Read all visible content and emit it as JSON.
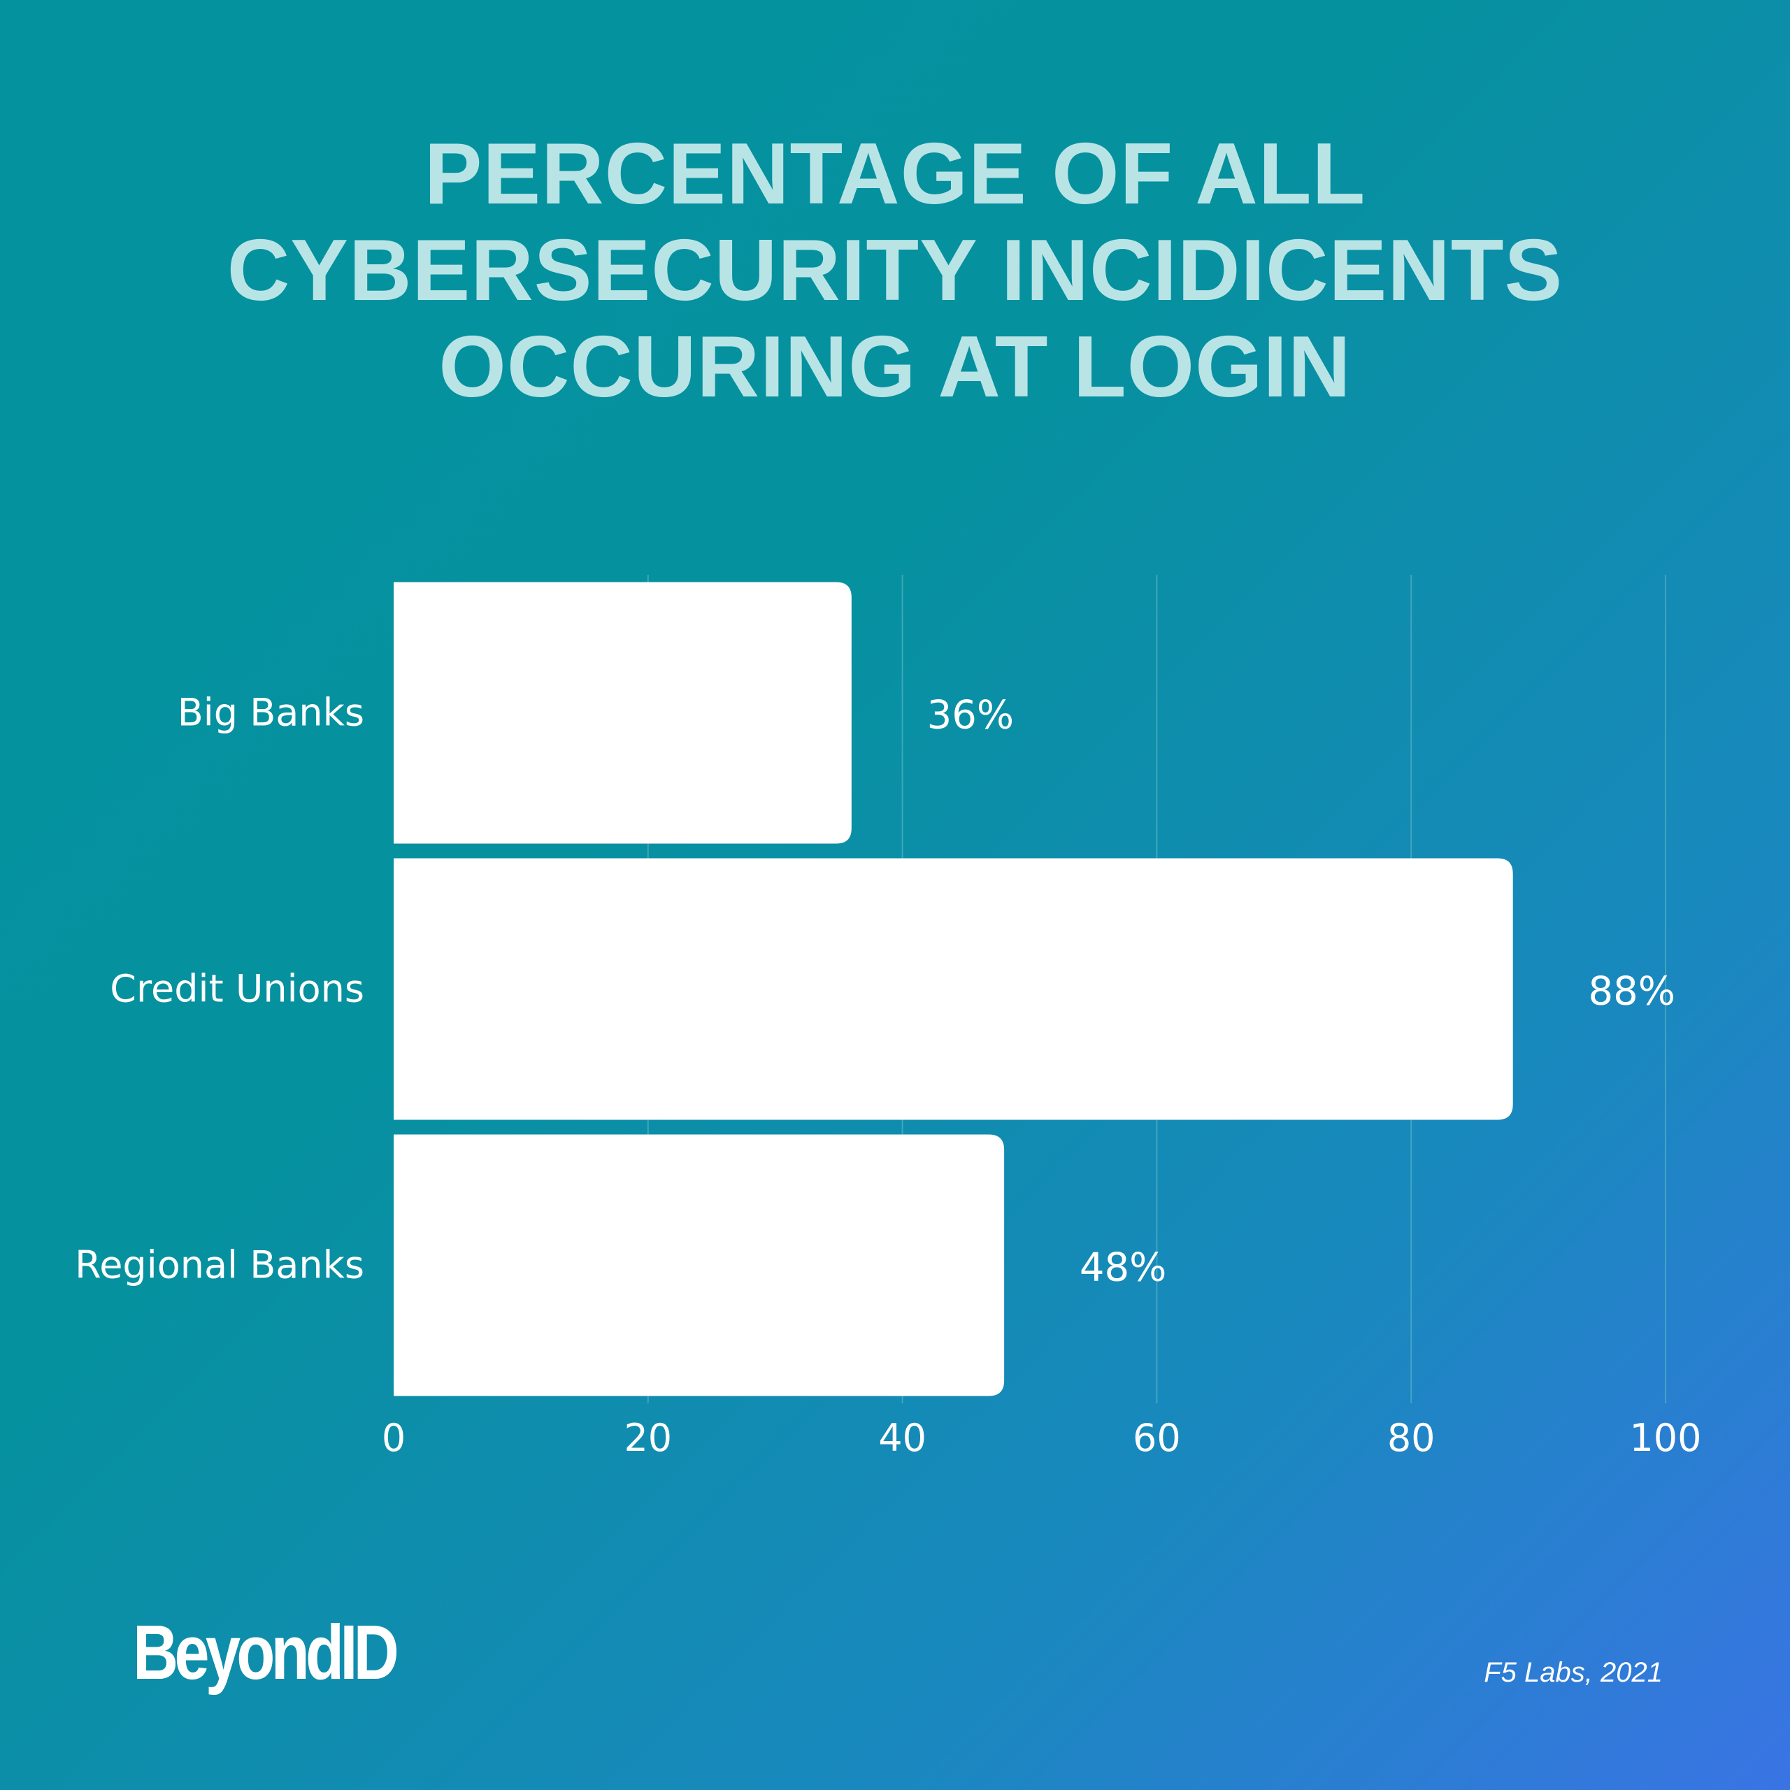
{
  "title_lines": [
    "PERCENTAGE OF ALL",
    "CYBERSECURITY INCIDICENTS",
    "OCCURING AT LOGIN"
  ],
  "logo": "BeyondID",
  "source": "F5 Labs, 2021",
  "colors": {
    "bar": "#ffffff",
    "title": "#b9e4e6",
    "grid": "#5fb8c6"
  },
  "chart_data": {
    "type": "bar",
    "orientation": "horizontal",
    "title": "PERCENTAGE OF ALL CYBERSECURITY INCIDICENTS OCCURING AT LOGIN",
    "categories": [
      "Big Banks",
      "Credit Unions",
      "Regional Banks"
    ],
    "values": [
      36,
      88,
      48
    ],
    "value_labels": [
      "36%",
      "88%",
      "48%"
    ],
    "xlim": [
      0,
      100
    ],
    "xticks": [
      0,
      20,
      40,
      60,
      80,
      100
    ],
    "xtick_labels": [
      "0",
      "20",
      "40",
      "60",
      "80",
      "100"
    ],
    "grid": true,
    "legend": "none"
  }
}
